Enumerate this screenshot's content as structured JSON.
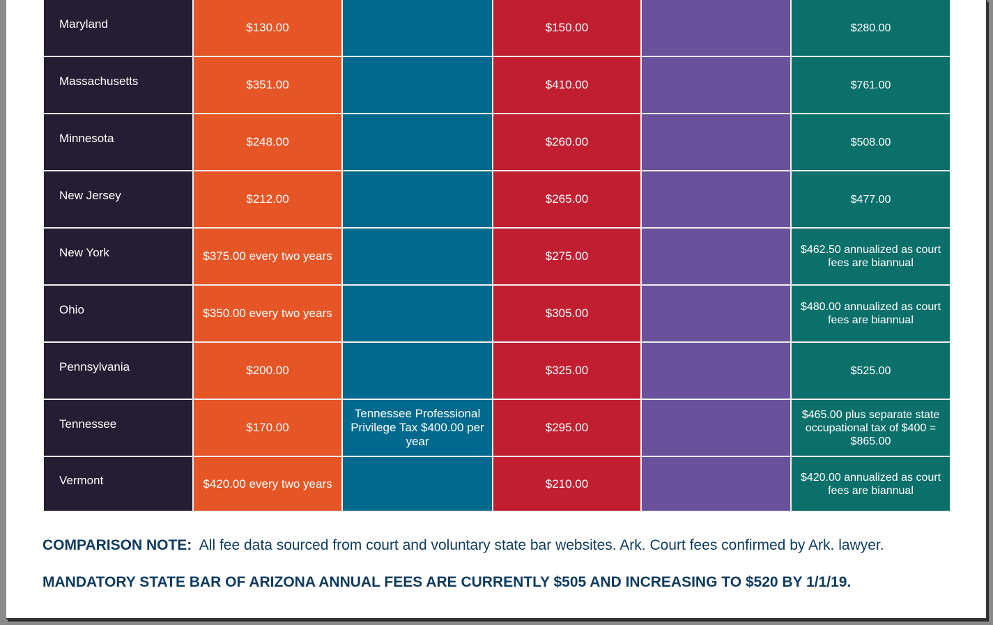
{
  "table": {
    "rows": [
      {
        "state": "Maryland",
        "col1": "$130.00",
        "col2": "",
        "col3": "$150.00",
        "col4": "",
        "col5": "$280.00"
      },
      {
        "state": "Massachusetts",
        "col1": "$351.00",
        "col2": "",
        "col3": "$410.00",
        "col4": "",
        "col5": "$761.00"
      },
      {
        "state": "Minnesota",
        "col1": "$248.00",
        "col2": "",
        "col3": "$260.00",
        "col4": "",
        "col5": "$508.00"
      },
      {
        "state": "New Jersey",
        "col1": "$212.00",
        "col2": "",
        "col3": "$265.00",
        "col4": "",
        "col5": "$477.00"
      },
      {
        "state": "New York",
        "col1": "$375.00 every two years",
        "col2": "",
        "col3": "$275.00",
        "col4": "",
        "col5": "$462.50 annualized as court fees are biannual"
      },
      {
        "state": "Ohio",
        "col1": "$350.00 every two years",
        "col2": "",
        "col3": "$305.00",
        "col4": "",
        "col5": "$480.00 annualized as court fees are biannual"
      },
      {
        "state": "Pennsylvania",
        "col1": "$200.00",
        "col2": "",
        "col3": "$325.00",
        "col4": "",
        "col5": "$525.00"
      },
      {
        "state": "Tennessee",
        "col1": "$170.00",
        "col2": "Tennessee Professional Privilege Tax $400.00 per year",
        "col3": "$295.00",
        "col4": "",
        "col5": "$465.00 plus separate state occupational tax of $400 = $865.00"
      },
      {
        "state": "Vermont",
        "col1": "$420.00 every two years",
        "col2": "",
        "col3": "$210.00",
        "col4": "",
        "col5": "$420.00 annualized as court fees are biannual"
      }
    ]
  },
  "comparison_note": {
    "label": "COMPARISON NOTE:",
    "text": "All fee data sourced from court and voluntary state bar websites. Ark. Court fees confirmed by Ark. lawyer."
  },
  "mandatory_note": "MANDATORY STATE BAR OF ARIZONA ANNUAL FEES ARE CURRENTLY $505 AND INCREASING TO $520 BY 1/1/19.",
  "colors": {
    "state_col": "#241d33",
    "col1": "#e55525",
    "col2": "#006a8e",
    "col3": "#c11f31",
    "col4": "#6a519c",
    "col5": "#0b6f6a",
    "note_text": "#0f3a5f"
  }
}
